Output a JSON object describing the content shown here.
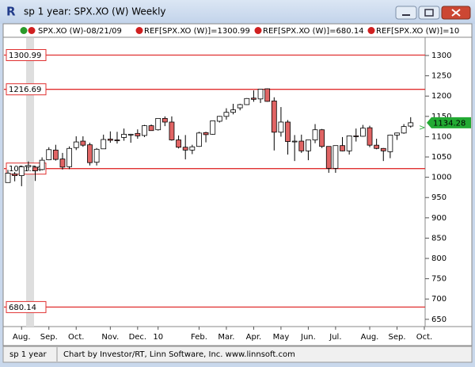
{
  "window": {
    "title": "sp 1 year: SPX.XO (W) Weekly",
    "status_left": "sp 1 year",
    "status_text": "Chart by Investor/RT, Linn Software, Inc. www.linnsoft.com"
  },
  "legend": [
    "SPX.XO (W)-08/21/09",
    "REF[SPX.XO (W)]=1300.99",
    "REF[SPX.XO (W)]=680.14",
    "REF[SPX.XO (W)]=10"
  ],
  "chart_data": {
    "type": "candlestick",
    "categories": [
      null,
      null,
      "Aug.",
      null,
      null,
      null,
      "Sep.",
      null,
      null,
      null,
      "Oct.",
      null,
      null,
      null,
      null,
      "Nov.",
      null,
      null,
      null,
      "Dec.",
      null,
      null,
      "10",
      null,
      null,
      null,
      null,
      null,
      "Feb.",
      null,
      null,
      null,
      "Mar.",
      null,
      null,
      null,
      "Apr.",
      null,
      null,
      null,
      "May",
      null,
      null,
      null,
      "Jun.",
      null,
      null,
      null,
      "Jul.",
      null,
      null,
      null,
      null,
      "Aug.",
      null,
      null,
      null,
      "Sep.",
      null,
      null,
      null,
      "Oct."
    ],
    "open": [
      987,
      1008,
      1004,
      1026,
      1025,
      1019,
      1043,
      1067,
      1045,
      1026,
      1073,
      1089,
      1080,
      1037,
      1070,
      1094,
      1092,
      1098,
      1104,
      1108,
      1103,
      1127,
      1117,
      1145,
      1136,
      1092,
      1074,
      1067,
      1076,
      1110,
      1106,
      1138,
      1150,
      1160,
      1171,
      1179,
      1195,
      1193,
      1218,
      1188,
      1111,
      1136,
      1089,
      1089,
      1065,
      1092,
      1117,
      1076,
      1022,
      1078,
      1065,
      1102,
      1101,
      1122,
      1079,
      1071,
      1063,
      1104,
      1109,
      1126,
      null,
      null
    ],
    "high": [
      1018,
      1013,
      1027,
      1039,
      1028,
      1049,
      1074,
      1080,
      1060,
      1076,
      1101,
      1101,
      1085,
      1072,
      1105,
      1113,
      1112,
      1120,
      1107,
      1118,
      1129,
      1130,
      1145,
      1150,
      1150,
      1103,
      1104,
      1080,
      1112,
      1112,
      1139,
      1151,
      1170,
      1181,
      1181,
      1195,
      1214,
      1217,
      1219,
      1197,
      1173,
      1141,
      1104,
      1105,
      1092,
      1131,
      1119,
      1076,
      1078,
      1099,
      1103,
      1120,
      1129,
      1127,
      1095,
      1072,
      1105,
      1110,
      1131,
      1148,
      null,
      null
    ],
    "low": [
      987,
      990,
      978,
      1016,
      991,
      1017,
      1042,
      1041,
      1019,
      1020,
      1067,
      1075,
      1029,
      1029,
      1070,
      1085,
      1083,
      1090,
      1085,
      1095,
      1099,
      1115,
      1115,
      1126,
      1090,
      1071,
      1044,
      1057,
      1075,
      1086,
      1105,
      1135,
      1142,
      1155,
      1165,
      1178,
      1186,
      1183,
      1186,
      1066,
      1100,
      1056,
      1040,
      1060,
      1042,
      1084,
      1072,
      1011,
      1011,
      1064,
      1056,
      1088,
      1100,
      1074,
      1069,
      1040,
      1047,
      1092,
      1107,
      1122,
      null,
      null
    ],
    "close": [
      1010,
      1004,
      1026,
      1029,
      1016,
      1042,
      1068,
      1044,
      1025,
      1071,
      1087,
      1079,
      1036,
      1069,
      1093,
      1091,
      1091,
      1106,
      1106,
      1102,
      1127,
      1115,
      1145,
      1136,
      1092,
      1074,
      1067,
      1075,
      1109,
      1105,
      1139,
      1150,
      1160,
      1166,
      1179,
      1194,
      1192,
      1217,
      1187,
      1111,
      1136,
      1088,
      1089,
      1065,
      1092,
      1117,
      1076,
      1022,
      1078,
      1065,
      1102,
      1101,
      1121,
      1079,
      1071,
      1065,
      1104,
      1109,
      1125,
      1134.28,
      null,
      null
    ],
    "up_color": "#ffffff",
    "down_color": "#e06464",
    "ref_color": "#e03030",
    "price_color": "#22aa33",
    "ref_lines": [
      1300.99,
      1216.69,
      1021.34,
      680.14
    ],
    "ylim": [
      636,
      1343
    ],
    "yticks": [
      650,
      700,
      750,
      800,
      850,
      900,
      950,
      1000,
      1050,
      1100,
      1150,
      1200,
      1250,
      1300
    ]
  }
}
